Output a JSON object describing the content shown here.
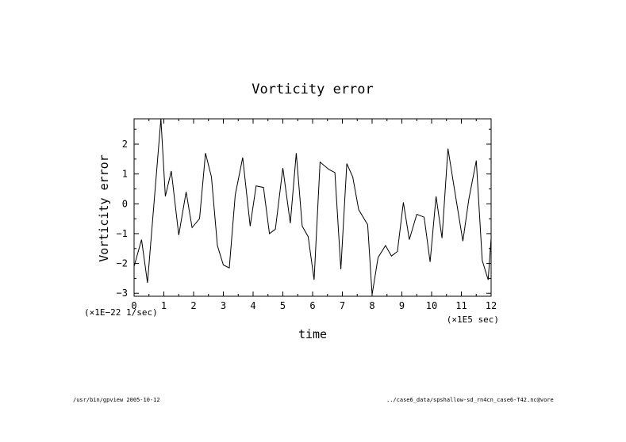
{
  "chart_data": {
    "type": "line",
    "title": "Vorticity error",
    "xlabel": "time",
    "ylabel": "Vorticity error",
    "x_unit": "(×1E5 sec)",
    "y_unit": "(×1E−22 1/sec)",
    "xlim": [
      0,
      12
    ],
    "ylim": [
      -3.1,
      2.85
    ],
    "x_ticks": [
      0,
      1,
      2,
      3,
      4,
      5,
      6,
      7,
      8,
      9,
      10,
      11,
      12
    ],
    "x_tick_labels": [
      "0",
      "1",
      "2",
      "3",
      "4",
      "5",
      "6",
      "7",
      "8",
      "9",
      "10",
      "11",
      "12"
    ],
    "y_ticks": [
      -3,
      -2,
      -1,
      0,
      1,
      2
    ],
    "y_tick_labels": [
      "−3",
      "−2",
      "−1",
      "0",
      "1",
      "2"
    ],
    "grid": false,
    "series": [
      {
        "x": [
          0,
          0.25,
          0.45,
          0.9,
          1.05,
          1.25,
          1.5,
          1.75,
          1.95,
          2.2,
          2.4,
          2.6,
          2.8,
          3.0,
          3.2,
          3.4,
          3.65,
          3.9,
          4.1,
          4.35,
          4.55,
          4.75,
          5.0,
          5.25,
          5.45,
          5.65,
          5.85,
          6.05,
          6.25,
          6.55,
          6.75,
          6.95,
          7.15,
          7.35,
          7.55,
          7.85,
          8.0,
          8.2,
          8.45,
          8.65,
          8.85,
          9.05,
          9.25,
          9.5,
          9.75,
          9.95,
          10.15,
          10.35,
          10.55,
          10.75,
          11.05,
          11.25,
          11.5,
          11.7,
          11.9,
          12.0
        ],
        "y": [
          -2.1,
          -1.2,
          -2.65,
          2.85,
          0.25,
          1.1,
          -1.05,
          0.4,
          -0.8,
          -0.5,
          1.7,
          0.9,
          -1.4,
          -2.05,
          -2.15,
          0.3,
          1.55,
          -0.75,
          0.6,
          0.55,
          -1.0,
          -0.85,
          1.2,
          -0.65,
          1.7,
          -0.75,
          -1.1,
          -2.55,
          1.4,
          1.15,
          1.05,
          -2.2,
          1.35,
          0.9,
          -0.2,
          -0.7,
          -3.05,
          -1.8,
          -1.4,
          -1.75,
          -1.6,
          0.05,
          -1.2,
          -0.35,
          -0.45,
          -1.95,
          0.25,
          -1.15,
          1.85,
          0.6,
          -1.25,
          0.15,
          1.45,
          -1.9,
          -2.55,
          -1.15
        ]
      }
    ]
  },
  "footer": {
    "left": "/usr/bin/gpview  2005-10-12",
    "right": "../case6_data/spshallow-sd_rn4cn_case6-T42.nc@vore"
  }
}
